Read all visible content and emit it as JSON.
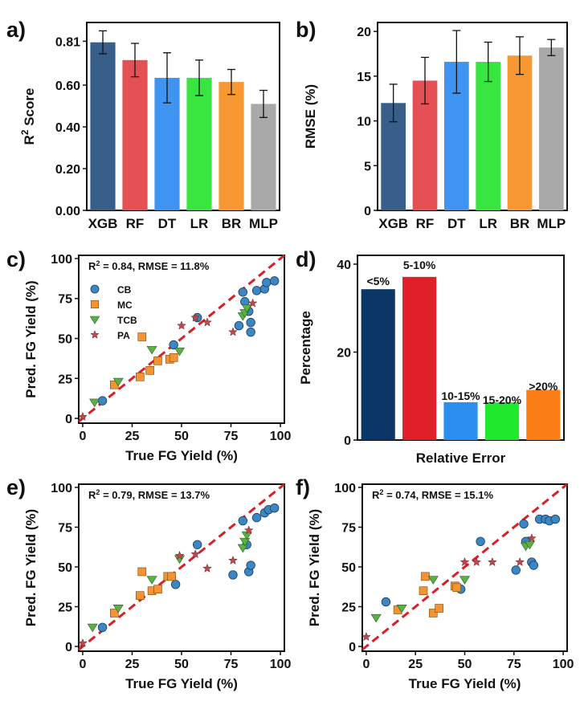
{
  "chart_data": [
    {
      "panel": "a)",
      "type": "bar",
      "categories": [
        "XGB",
        "RF",
        "DT",
        "LR",
        "BR",
        "MLP"
      ],
      "values": [
        0.805,
        0.72,
        0.635,
        0.635,
        0.615,
        0.51
      ],
      "errors": [
        0.055,
        0.08,
        0.12,
        0.085,
        0.06,
        0.065
      ],
      "colors": [
        "#375f8a",
        "#e55055",
        "#3f94f2",
        "#39e63f",
        "#f79832",
        "#a9a9a9"
      ],
      "ylabel": "R² Score",
      "ylim": [
        0,
        0.9
      ],
      "yticks": [
        0.0,
        0.2,
        0.4,
        0.6,
        0.81
      ],
      "ytick_labels": [
        "0.00",
        "0.20",
        "0.40",
        "0.60",
        "0.81"
      ]
    },
    {
      "panel": "b)",
      "type": "bar",
      "categories": [
        "XGB",
        "RF",
        "DT",
        "LR",
        "BR",
        "MLP"
      ],
      "values": [
        12.0,
        14.5,
        16.6,
        16.6,
        17.3,
        18.2
      ],
      "errors": [
        2.1,
        2.6,
        3.5,
        2.2,
        2.1,
        0.9
      ],
      "colors": [
        "#375f8a",
        "#e55055",
        "#3f94f2",
        "#39e63f",
        "#f79832",
        "#a9a9a9"
      ],
      "ylabel": "RMSE (%)",
      "ylim": [
        0,
        21
      ],
      "yticks": [
        0,
        5,
        10,
        15,
        20
      ],
      "ytick_labels": [
        "0",
        "5",
        "10",
        "15",
        "20"
      ]
    },
    {
      "panel": "c)",
      "type": "scatter",
      "metrics": "R² = 0.84, RMSE = 11.8%",
      "xlabel": "True FG Yield (%)",
      "ylabel": "Pred. FG Yield (%)",
      "xlim": [
        -2,
        102
      ],
      "ylim": [
        -3,
        102
      ],
      "ticks": [
        0,
        25,
        50,
        75,
        100
      ],
      "tick_labels": [
        "0",
        "25",
        "50",
        "75",
        "100"
      ],
      "legend": [
        "CB",
        "MC",
        "TCB",
        "PA"
      ],
      "series": [
        {
          "name": "CB",
          "x": [
            10,
            46,
            58,
            79,
            81,
            82,
            84,
            85,
            85,
            88,
            92,
            93,
            97
          ],
          "y": [
            11,
            46,
            63,
            58,
            79,
            73,
            67,
            60,
            54,
            80,
            81,
            85,
            86
          ]
        },
        {
          "name": "MC",
          "x": [
            16,
            29,
            30,
            34,
            38,
            44,
            46
          ],
          "y": [
            21,
            26,
            51,
            30,
            36,
            37,
            38
          ]
        },
        {
          "name": "TCB",
          "x": [
            6,
            18,
            35,
            49,
            81,
            82,
            83
          ],
          "y": [
            10,
            23,
            43,
            42,
            64,
            66,
            69
          ]
        },
        {
          "name": "PA",
          "x": [
            0,
            50,
            57,
            63,
            76,
            86
          ],
          "y": [
            1,
            58,
            63,
            60,
            54,
            72
          ]
        }
      ]
    },
    {
      "panel": "d)",
      "type": "bar",
      "categories": [
        "<5%",
        "5-10%",
        "10-15%",
        "15-20%",
        ">20%"
      ],
      "values": [
        34.3,
        37.1,
        8.6,
        8.6,
        11.4
      ],
      "colors": [
        "#0b3665",
        "#e11f2b",
        "#2d8ef2",
        "#20e82d",
        "#fb7f16"
      ],
      "xlabel": "Relative Error",
      "ylabel": "Percentage",
      "ylim": [
        0,
        42
      ],
      "yticks": [
        0,
        20,
        40
      ],
      "ytick_labels": [
        "0",
        "20",
        "40"
      ]
    },
    {
      "panel": "e)",
      "type": "scatter",
      "metrics": "R² = 0.79, RMSE = 13.7%",
      "xlabel": "True FG Yield (%)",
      "ylabel": "Pred. FG Yield (%)",
      "xlim": [
        -2,
        102
      ],
      "ylim": [
        -3,
        102
      ],
      "ticks": [
        0,
        25,
        50,
        75,
        100
      ],
      "tick_labels": [
        "0",
        "25",
        "50",
        "75",
        "100"
      ],
      "series": [
        {
          "name": "CB",
          "x": [
            10,
            47,
            58,
            76,
            81,
            83,
            84,
            85,
            88,
            92,
            94,
            97
          ],
          "y": [
            12,
            39,
            64,
            45,
            79,
            64,
            47,
            51,
            81,
            84,
            86,
            87
          ]
        },
        {
          "name": "MC",
          "x": [
            16,
            29,
            30,
            35,
            38,
            43,
            45
          ],
          "y": [
            21,
            32,
            47,
            35,
            36,
            44,
            44
          ]
        },
        {
          "name": "TCB",
          "x": [
            5,
            18,
            35,
            49,
            81,
            82,
            83
          ],
          "y": [
            12,
            24,
            42,
            55,
            62,
            66,
            70
          ]
        },
        {
          "name": "PA",
          "x": [
            0,
            49,
            57,
            63,
            76,
            84
          ],
          "y": [
            2,
            57,
            58,
            49,
            54,
            73
          ]
        }
      ]
    },
    {
      "panel": "f)",
      "type": "scatter",
      "metrics": "R² = 0.74, RMSE = 15.1%",
      "xlabel": "True FG Yield (%)",
      "ylabel": "Pred. FG Yield (%)",
      "xlim": [
        -2,
        102
      ],
      "ylim": [
        -3,
        102
      ],
      "ticks": [
        0,
        25,
        50,
        75,
        100
      ],
      "tick_labels": [
        "0",
        "25",
        "50",
        "75",
        "100"
      ],
      "series": [
        {
          "name": "CB",
          "x": [
            10,
            48,
            58,
            76,
            80,
            81,
            84,
            85,
            88,
            91,
            93,
            96
          ],
          "y": [
            28,
            36,
            66,
            48,
            77,
            66,
            53,
            51,
            80,
            80,
            79,
            80
          ]
        },
        {
          "name": "MC",
          "x": [
            16,
            29,
            30,
            34,
            37,
            45,
            46
          ],
          "y": [
            23,
            35,
            44,
            21,
            24,
            38,
            37
          ]
        },
        {
          "name": "TCB",
          "x": [
            5,
            18,
            34,
            50,
            81,
            83
          ],
          "y": [
            18,
            24,
            42,
            42,
            63,
            64
          ]
        },
        {
          "name": "PA",
          "x": [
            0,
            50,
            56,
            64,
            78,
            84
          ],
          "y": [
            6,
            53,
            53,
            53,
            53,
            68
          ]
        }
      ]
    }
  ]
}
